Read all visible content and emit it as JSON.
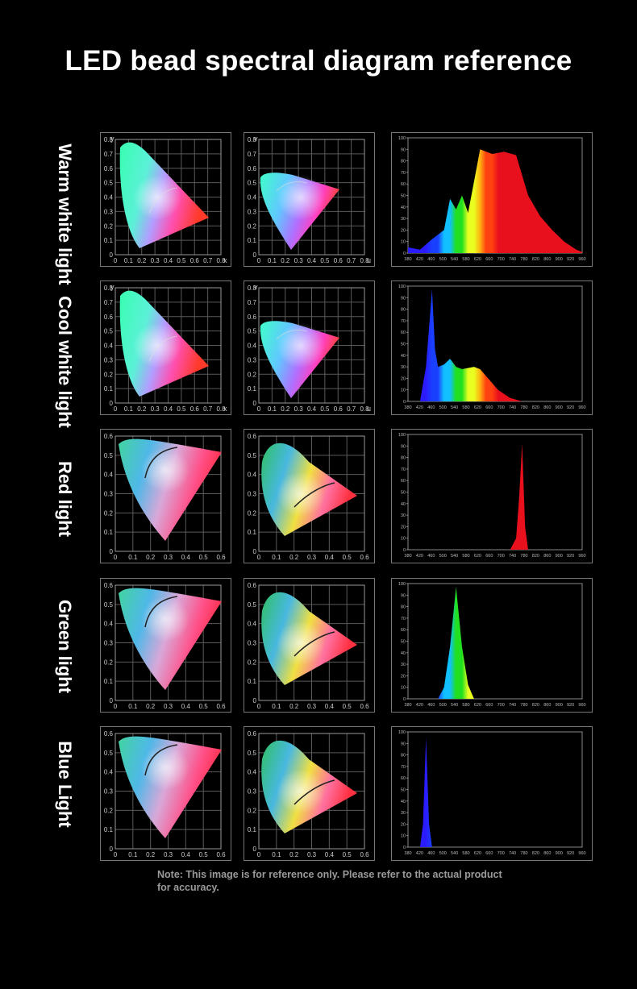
{
  "title": "LED bead spectral diagram reference",
  "note": "Note: This image is for reference only. Please refer to the actual product for accuracy.",
  "rows": [
    {
      "label": "Warm white light",
      "type": "warm"
    },
    {
      "label": "Cool white light",
      "type": "cool"
    },
    {
      "label": "Red light",
      "type": "red"
    },
    {
      "label": "Green light",
      "type": "green"
    },
    {
      "label": "Blue Light",
      "type": "blue"
    }
  ],
  "xy_chart": {
    "yticks": [
      "0",
      "0.1",
      "0.2",
      "0.3",
      "0.4",
      "0.5",
      "0.6",
      "0.7",
      "0.8"
    ],
    "xticks": [
      "0",
      "0.1",
      "0.2",
      "0.3",
      "0.4",
      "0.5",
      "0.6",
      "0.7",
      "0.8"
    ],
    "ylabel": "y",
    "xlabel": "x"
  },
  "uv_chart": {
    "yticks": [
      "0",
      "0.1",
      "0.2",
      "0.3",
      "0.4",
      "0.5",
      "0.6",
      "0.7",
      "0.8"
    ],
    "xticks": [
      "0",
      "0.1",
      "0.2",
      "0.3",
      "0.4",
      "0.5",
      "0.6",
      "0.7",
      "0.8"
    ],
    "ylabel": "v",
    "xlabel": "u"
  },
  "small_chart": {
    "yticks": [
      "0",
      "0.1",
      "0.2",
      "0.3",
      "0.4",
      "0.5",
      "0.6"
    ],
    "xticks": [
      "0",
      "0.1",
      "0.2",
      "0.3",
      "0.4",
      "0.5",
      "0.6"
    ]
  },
  "spectrum_axes": {
    "yticks": [
      "0",
      "10",
      "20",
      "30",
      "40",
      "50",
      "60",
      "70",
      "80",
      "90",
      "100"
    ],
    "xticks": [
      "380",
      "420",
      "460",
      "500",
      "540",
      "580",
      "620",
      "660",
      "700",
      "740",
      "780",
      "820",
      "860",
      "900",
      "920",
      "960"
    ]
  },
  "chart_data": [
    {
      "type": "area",
      "row": "Warm white light",
      "x": [
        380,
        420,
        460,
        500,
        520,
        540,
        560,
        580,
        600,
        620,
        660,
        700,
        740,
        780,
        820,
        860,
        900,
        940,
        960
      ],
      "values": [
        5,
        3,
        12,
        20,
        47,
        38,
        50,
        35,
        62,
        90,
        86,
        88,
        85,
        50,
        32,
        20,
        10,
        3,
        1
      ],
      "xlim": [
        380,
        960
      ],
      "ylim": [
        0,
        100
      ]
    },
    {
      "type": "area",
      "row": "Cool white light",
      "x": [
        420,
        440,
        460,
        470,
        480,
        500,
        520,
        540,
        560,
        600,
        620,
        640,
        680,
        720,
        760
      ],
      "values": [
        0,
        30,
        97,
        45,
        30,
        32,
        37,
        30,
        28,
        30,
        28,
        22,
        10,
        3,
        0
      ],
      "xlim": [
        380,
        960
      ],
      "ylim": [
        0,
        100
      ]
    },
    {
      "type": "area",
      "row": "Red light",
      "x": [
        720,
        740,
        750,
        760,
        770,
        780
      ],
      "values": [
        0,
        10,
        45,
        92,
        20,
        0
      ],
      "xlim": [
        380,
        960
      ],
      "ylim": [
        0,
        100
      ]
    },
    {
      "type": "area",
      "row": "Green light",
      "x": [
        480,
        500,
        520,
        540,
        560,
        580,
        600
      ],
      "values": [
        0,
        10,
        45,
        97,
        45,
        12,
        0
      ],
      "xlim": [
        380,
        960
      ],
      "ylim": [
        0,
        100
      ]
    },
    {
      "type": "area",
      "row": "Blue Light",
      "x": [
        420,
        430,
        440,
        450,
        460
      ],
      "values": [
        0,
        20,
        95,
        20,
        0
      ],
      "xlim": [
        380,
        960
      ],
      "ylim": [
        0,
        100
      ]
    }
  ],
  "colors": {
    "background": "#000000",
    "grid": "#777777",
    "text": "#ffffff"
  }
}
